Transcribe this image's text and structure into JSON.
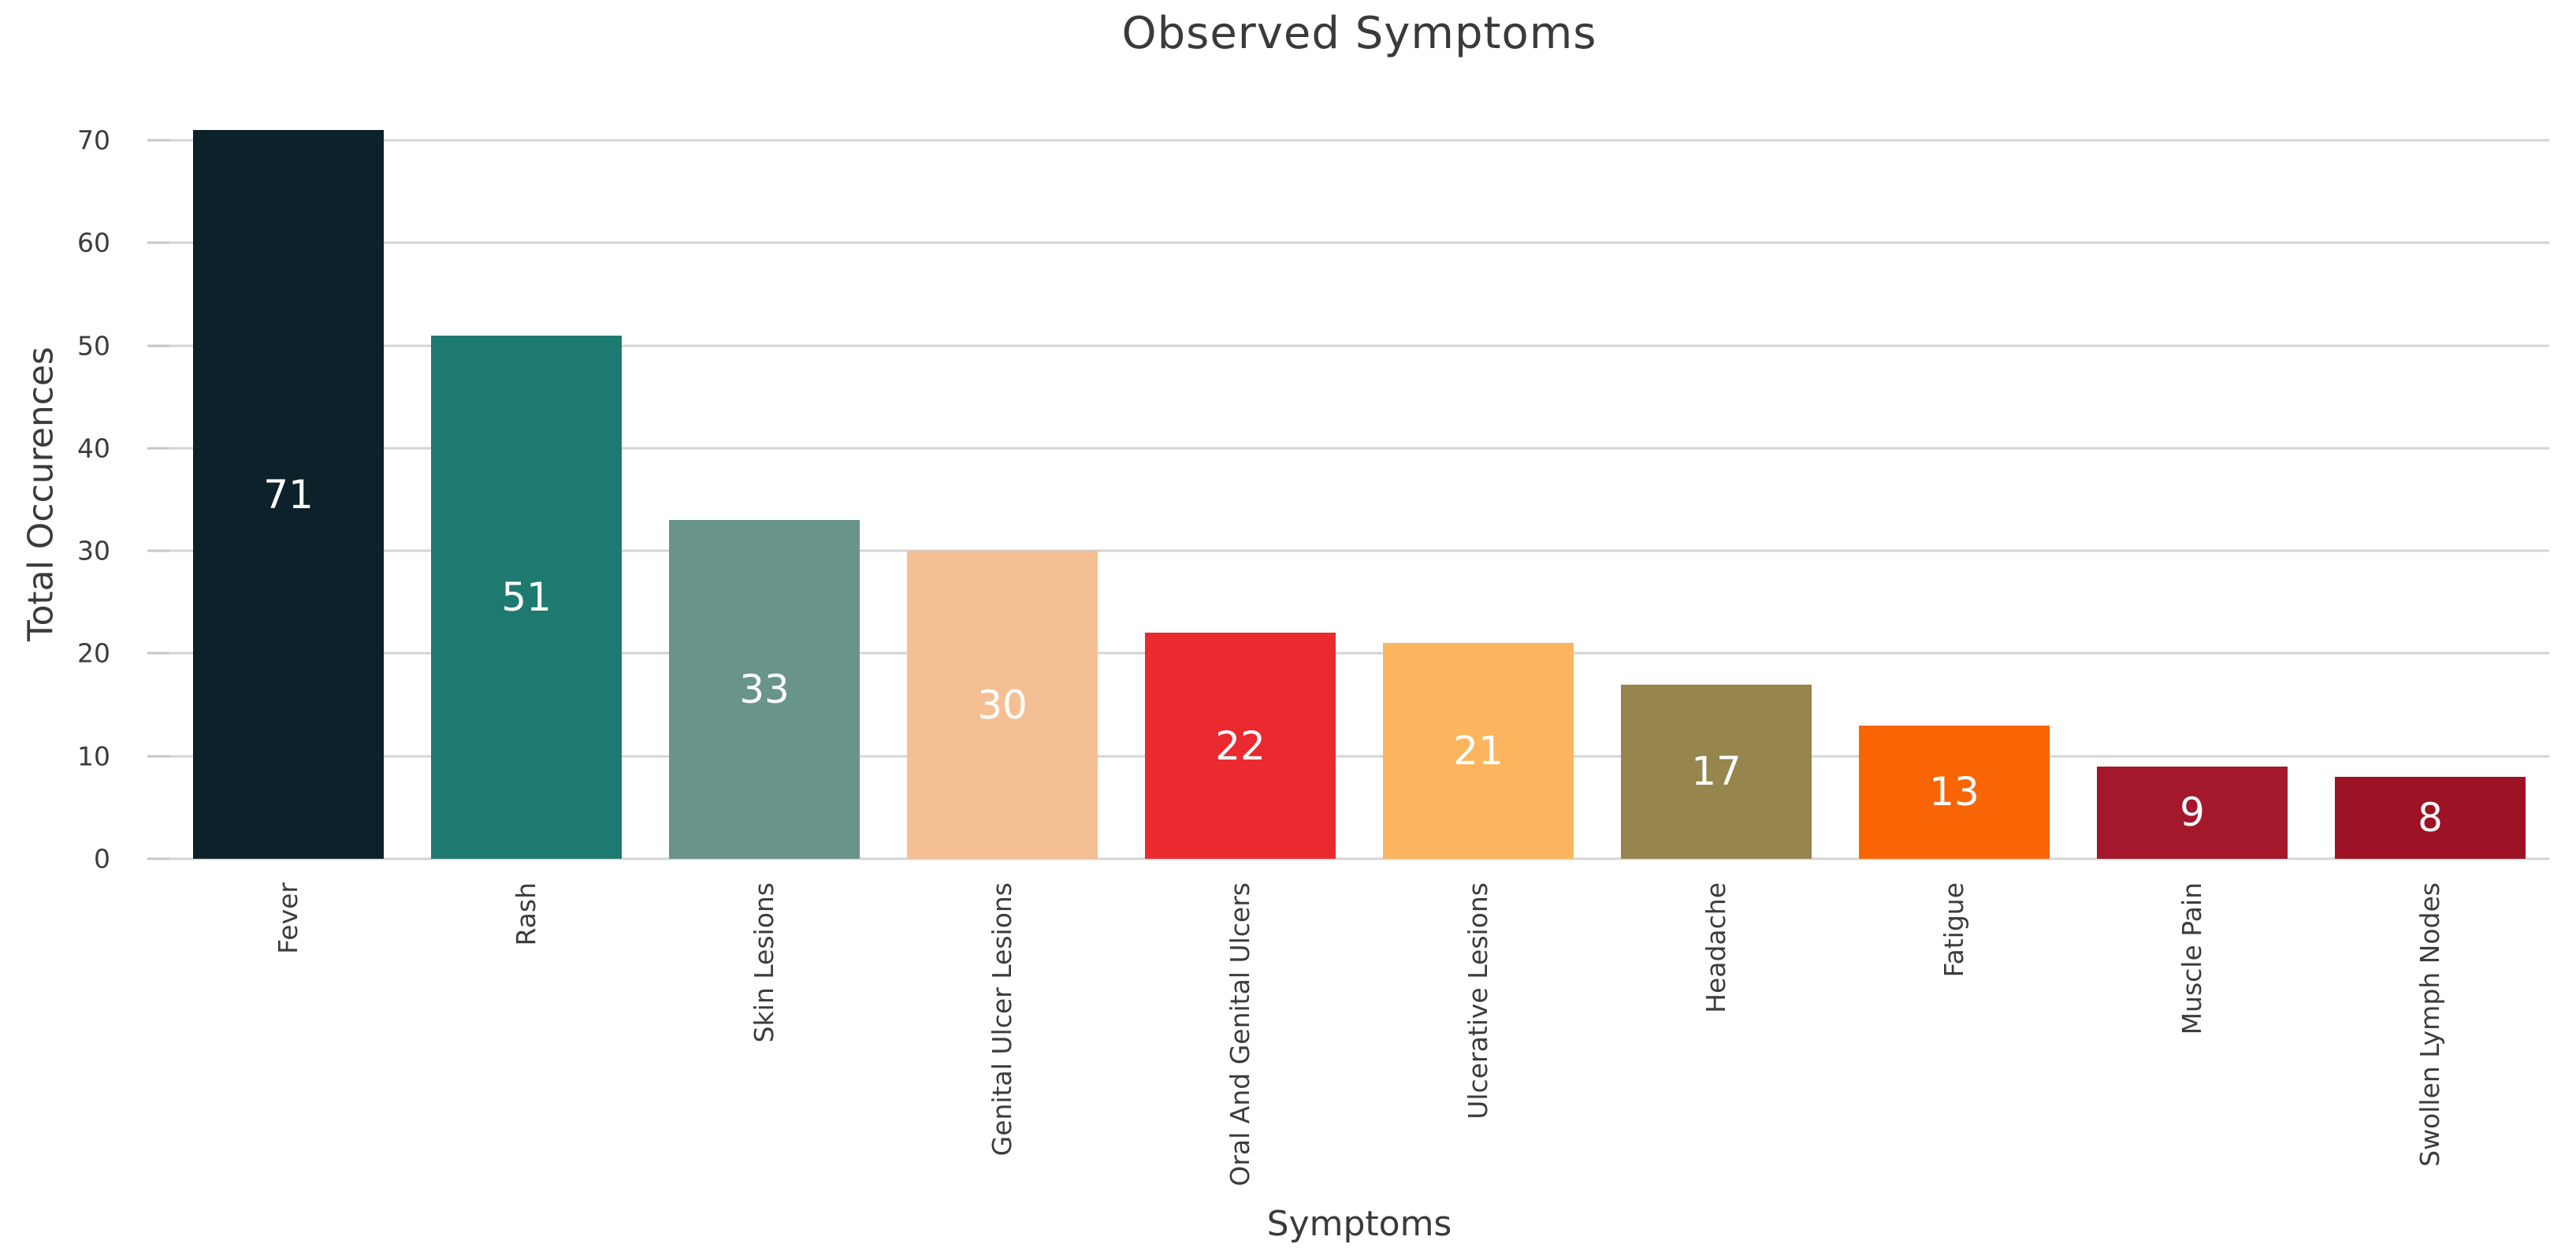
{
  "chart_data": {
    "type": "bar",
    "title": "Observed Symptoms",
    "xlabel": "Symptoms",
    "ylabel": "Total Occurences",
    "categories": [
      "Fever",
      "Rash",
      "Skin Lesions",
      "Genital Ulcer Lesions",
      "Oral And Genital Ulcers",
      "Ulcerative Lesions",
      "Headache",
      "Fatigue",
      "Muscle Pain",
      "Swollen Lymph Nodes"
    ],
    "values": [
      71,
      51,
      33,
      30,
      22,
      21,
      17,
      13,
      9,
      8
    ],
    "bar_colors": [
      "#0d212b",
      "#1e7a71",
      "#68948b",
      "#f4c093",
      "#ea2a2e",
      "#fcb55e",
      "#96854c",
      "#f96505",
      "#a3182b",
      "#9d1224"
    ],
    "value_label_color": "#ffffff",
    "yticks": [
      0,
      10,
      20,
      30,
      40,
      50,
      60,
      70
    ],
    "ylim": [
      0,
      71
    ],
    "grid": "horizontal",
    "gridline_color": "#d4d4d4",
    "tick_mark_color": "#c6c6c6",
    "text_color": "#3a3a3a",
    "background_color": "#ffffff",
    "legend": "none",
    "bar_label_position": "center"
  }
}
